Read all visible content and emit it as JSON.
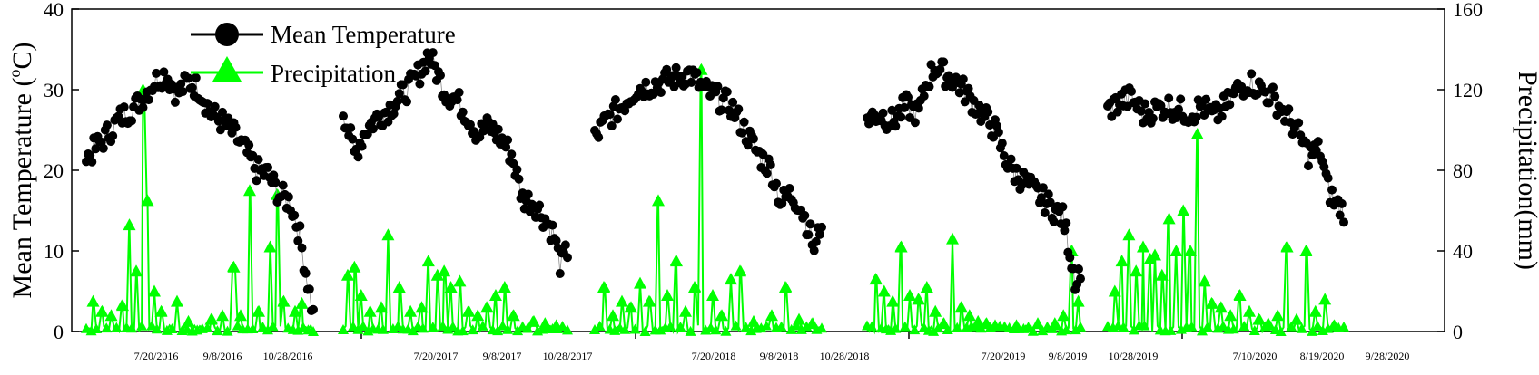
{
  "chart_data": {
    "type": "line",
    "ylabel_left": "Mean Temperature (°C)",
    "ylabel_left_parts": {
      "text": "Mean Temperature (",
      "sup": "o",
      "unit": "C)"
    },
    "ylabel_right": "Precipitation(mm)",
    "ylim_left": [
      0,
      40
    ],
    "ylim_right": [
      0,
      160
    ],
    "yticks_left": [
      "0",
      "10",
      "20",
      "30",
      "40"
    ],
    "yticks_right": [
      "0",
      "40",
      "80",
      "120",
      "160"
    ],
    "legend_position": "top-left",
    "series": [
      {
        "name": "Mean Temperature",
        "color": "#000000",
        "marker": "circle",
        "axis": "left"
      },
      {
        "name": "Precipitation",
        "color": "#00ff00",
        "marker": "triangle",
        "axis": "right"
      }
    ],
    "panels": [
      {
        "season": "2016",
        "date_labels": [
          "7/20/2016",
          "9/8/2016",
          "10/28/2016"
        ],
        "temperature_trend": [
          [
            0,
            21.5
          ],
          [
            0.08,
            24
          ],
          [
            0.15,
            26.5
          ],
          [
            0.22,
            28
          ],
          [
            0.3,
            31
          ],
          [
            0.35,
            32
          ],
          [
            0.4,
            29.5
          ],
          [
            0.45,
            31
          ],
          [
            0.5,
            30
          ],
          [
            0.55,
            27
          ],
          [
            0.6,
            26
          ],
          [
            0.65,
            24.5
          ],
          [
            0.7,
            22.5
          ],
          [
            0.75,
            20
          ],
          [
            0.8,
            19.5
          ],
          [
            0.85,
            17
          ],
          [
            0.9,
            16
          ],
          [
            0.94,
            12
          ],
          [
            0.97,
            7
          ],
          [
            1,
            2
          ]
        ],
        "precip_spikes": [
          [
            0.03,
            15
          ],
          [
            0.07,
            10
          ],
          [
            0.11,
            8
          ],
          [
            0.16,
            13
          ],
          [
            0.19,
            53
          ],
          [
            0.22,
            30
          ],
          [
            0.25,
            120
          ],
          [
            0.27,
            65
          ],
          [
            0.3,
            20
          ],
          [
            0.33,
            10
          ],
          [
            0.4,
            15
          ],
          [
            0.45,
            5
          ],
          [
            0.55,
            6
          ],
          [
            0.6,
            8
          ],
          [
            0.65,
            32
          ],
          [
            0.68,
            8
          ],
          [
            0.72,
            70
          ],
          [
            0.76,
            10
          ],
          [
            0.81,
            42
          ],
          [
            0.84,
            68
          ],
          [
            0.87,
            15
          ],
          [
            0.92,
            10
          ],
          [
            0.95,
            14
          ]
        ]
      },
      {
        "season": "2017",
        "date_labels": [
          "7/20/2017",
          "9/8/2017",
          "10/28/2017"
        ],
        "temperature_trend": [
          [
            0,
            27.5
          ],
          [
            0.05,
            22
          ],
          [
            0.1,
            25
          ],
          [
            0.15,
            26.5
          ],
          [
            0.2,
            27.5
          ],
          [
            0.25,
            29
          ],
          [
            0.3,
            30.5
          ],
          [
            0.35,
            32.5
          ],
          [
            0.38,
            34.5
          ],
          [
            0.42,
            32
          ],
          [
            0.46,
            29.5
          ],
          [
            0.5,
            29
          ],
          [
            0.55,
            27
          ],
          [
            0.6,
            24.5
          ],
          [
            0.65,
            25.5
          ],
          [
            0.7,
            24
          ],
          [
            0.75,
            22
          ],
          [
            0.8,
            16.5
          ],
          [
            0.85,
            16
          ],
          [
            0.9,
            14
          ],
          [
            0.94,
            12
          ],
          [
            0.97,
            8
          ],
          [
            1,
            10
          ]
        ],
        "precip_spikes": [
          [
            0.02,
            28
          ],
          [
            0.05,
            32
          ],
          [
            0.08,
            18
          ],
          [
            0.12,
            10
          ],
          [
            0.17,
            12
          ],
          [
            0.2,
            48
          ],
          [
            0.25,
            22
          ],
          [
            0.3,
            10
          ],
          [
            0.35,
            12
          ],
          [
            0.38,
            35
          ],
          [
            0.42,
            28
          ],
          [
            0.45,
            30
          ],
          [
            0.48,
            22
          ],
          [
            0.52,
            25
          ],
          [
            0.56,
            10
          ],
          [
            0.6,
            8
          ],
          [
            0.64,
            12
          ],
          [
            0.68,
            18
          ],
          [
            0.72,
            22
          ],
          [
            0.76,
            8
          ],
          [
            0.85,
            5
          ],
          [
            0.9,
            4
          ],
          [
            0.95,
            3
          ]
        ]
      },
      {
        "season": "2018",
        "date_labels": [
          "7/20/2018",
          "9/8/2018",
          "10/28/2018"
        ],
        "temperature_trend": [
          [
            0,
            24
          ],
          [
            0.06,
            26.5
          ],
          [
            0.12,
            28
          ],
          [
            0.18,
            30
          ],
          [
            0.24,
            30.5
          ],
          [
            0.3,
            31
          ],
          [
            0.36,
            31.5
          ],
          [
            0.42,
            32
          ],
          [
            0.48,
            30
          ],
          [
            0.54,
            29
          ],
          [
            0.6,
            28
          ],
          [
            0.66,
            25
          ],
          [
            0.72,
            22
          ],
          [
            0.78,
            20
          ],
          [
            0.82,
            16
          ],
          [
            0.86,
            17
          ],
          [
            0.9,
            16
          ],
          [
            0.94,
            13
          ],
          [
            0.97,
            10
          ],
          [
            1,
            14
          ]
        ],
        "precip_spikes": [
          [
            0.04,
            22
          ],
          [
            0.08,
            8
          ],
          [
            0.12,
            15
          ],
          [
            0.16,
            12
          ],
          [
            0.2,
            24
          ],
          [
            0.24,
            15
          ],
          [
            0.28,
            65
          ],
          [
            0.32,
            18
          ],
          [
            0.36,
            35
          ],
          [
            0.4,
            10
          ],
          [
            0.44,
            22
          ],
          [
            0.47,
            130
          ],
          [
            0.52,
            18
          ],
          [
            0.56,
            8
          ],
          [
            0.6,
            26
          ],
          [
            0.64,
            30
          ],
          [
            0.7,
            5
          ],
          [
            0.78,
            8
          ],
          [
            0.84,
            22
          ],
          [
            0.9,
            6
          ],
          [
            0.96,
            4
          ]
        ]
      },
      {
        "season": "2019",
        "date_labels": [
          "7/20/2019",
          "9/8/2019",
          "10/28/2019"
        ],
        "temperature_trend": [
          [
            0,
            26.5
          ],
          [
            0.06,
            27
          ],
          [
            0.12,
            26
          ],
          [
            0.18,
            28
          ],
          [
            0.24,
            27
          ],
          [
            0.28,
            31
          ],
          [
            0.32,
            33
          ],
          [
            0.36,
            32
          ],
          [
            0.42,
            31
          ],
          [
            0.48,
            29
          ],
          [
            0.54,
            27
          ],
          [
            0.6,
            25
          ],
          [
            0.64,
            22
          ],
          [
            0.68,
            20
          ],
          [
            0.72,
            19
          ],
          [
            0.76,
            18
          ],
          [
            0.8,
            17
          ],
          [
            0.84,
            16
          ],
          [
            0.88,
            15
          ],
          [
            0.92,
            14
          ],
          [
            0.95,
            10
          ],
          [
            0.98,
            6
          ],
          [
            1,
            8
          ]
        ],
        "precip_spikes": [
          [
            0.04,
            26
          ],
          [
            0.08,
            20
          ],
          [
            0.12,
            15
          ],
          [
            0.16,
            42
          ],
          [
            0.2,
            18
          ],
          [
            0.24,
            16
          ],
          [
            0.28,
            22
          ],
          [
            0.32,
            10
          ],
          [
            0.36,
            4
          ],
          [
            0.4,
            46
          ],
          [
            0.44,
            12
          ],
          [
            0.48,
            8
          ],
          [
            0.52,
            5
          ],
          [
            0.56,
            4
          ],
          [
            0.6,
            3
          ],
          [
            0.7,
            3
          ],
          [
            0.8,
            4
          ],
          [
            0.88,
            4
          ],
          [
            0.92,
            8
          ],
          [
            0.96,
            40
          ],
          [
            0.99,
            15
          ]
        ]
      },
      {
        "season": "2020",
        "date_labels": [
          "7/10/2020",
          "8/19/2020",
          "9/28/2020"
        ],
        "temperature_trend": [
          [
            0,
            27.5
          ],
          [
            0.05,
            28.5
          ],
          [
            0.1,
            29
          ],
          [
            0.15,
            27
          ],
          [
            0.2,
            27.5
          ],
          [
            0.25,
            28
          ],
          [
            0.3,
            27.5
          ],
          [
            0.35,
            27
          ],
          [
            0.4,
            28
          ],
          [
            0.45,
            26.5
          ],
          [
            0.5,
            28
          ],
          [
            0.55,
            30
          ],
          [
            0.6,
            31
          ],
          [
            0.65,
            30
          ],
          [
            0.7,
            29
          ],
          [
            0.75,
            27
          ],
          [
            0.8,
            25
          ],
          [
            0.85,
            22
          ],
          [
            0.9,
            22.5
          ],
          [
            0.93,
            18
          ],
          [
            0.96,
            16
          ],
          [
            1,
            15
          ]
        ],
        "precip_spikes": [
          [
            0.03,
            20
          ],
          [
            0.06,
            35
          ],
          [
            0.09,
            48
          ],
          [
            0.12,
            30
          ],
          [
            0.15,
            42
          ],
          [
            0.18,
            36
          ],
          [
            0.2,
            38
          ],
          [
            0.23,
            28
          ],
          [
            0.26,
            56
          ],
          [
            0.29,
            40
          ],
          [
            0.32,
            60
          ],
          [
            0.35,
            40
          ],
          [
            0.38,
            98
          ],
          [
            0.41,
            25
          ],
          [
            0.44,
            14
          ],
          [
            0.48,
            12
          ],
          [
            0.52,
            8
          ],
          [
            0.56,
            18
          ],
          [
            0.6,
            10
          ],
          [
            0.64,
            6
          ],
          [
            0.68,
            4
          ],
          [
            0.72,
            8
          ],
          [
            0.76,
            42
          ],
          [
            0.8,
            6
          ],
          [
            0.84,
            40
          ],
          [
            0.88,
            10
          ],
          [
            0.92,
            16
          ],
          [
            0.96,
            3
          ]
        ]
      }
    ]
  },
  "legend": {
    "temperature_label": "Mean Temperature",
    "precip_label": "Precipitation"
  }
}
